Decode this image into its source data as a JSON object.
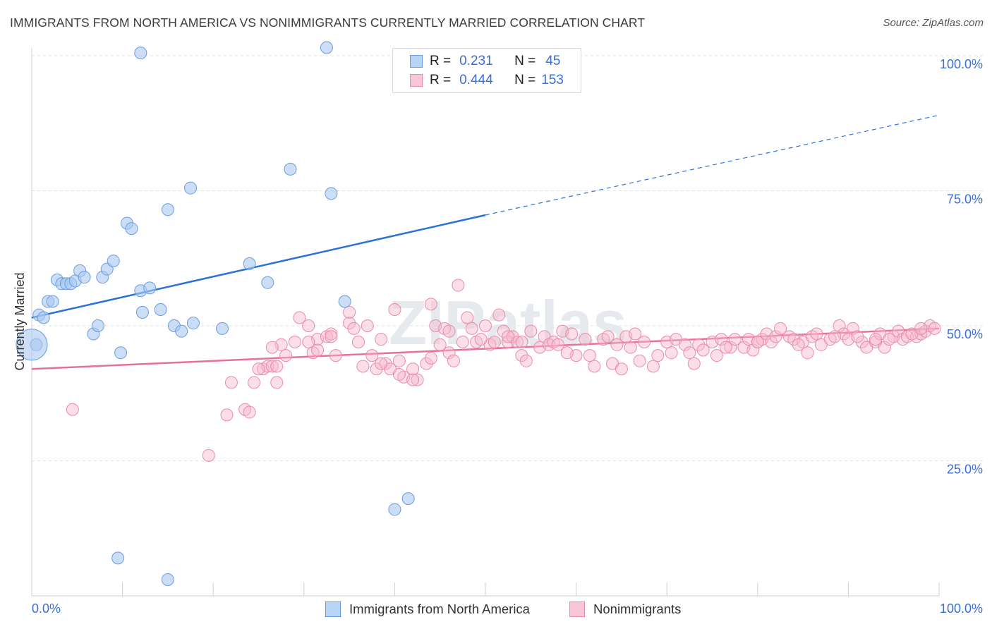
{
  "title": "IMMIGRANTS FROM NORTH AMERICA VS NONIMMIGRANTS CURRENTLY MARRIED CORRELATION CHART",
  "source": "Source: ZipAtlas.com",
  "watermark": "ZIPatlas",
  "legend": {
    "rows": [
      {
        "r_label": "R =",
        "r_value": "0.231",
        "n_label": "N =",
        "n_value": "45"
      },
      {
        "r_label": "R =",
        "r_value": "0.444",
        "n_label": "N =",
        "n_value": "153"
      }
    ]
  },
  "bottom_legend": {
    "series1": "Immigrants from North America",
    "series2": "Nonimmigrants"
  },
  "chart_data": {
    "type": "scatter",
    "title": "IMMIGRANTS FROM NORTH AMERICA VS NONIMMIGRANTS CURRENTLY MARRIED CORRELATION CHART",
    "xlabel": "",
    "ylabel": "Currently Married",
    "xlim": [
      0,
      100
    ],
    "ylim": [
      0,
      100
    ],
    "x_tick_labels": [
      "0.0%",
      "100.0%"
    ],
    "y_tick_labels": [
      "25.0%",
      "50.0%",
      "75.0%",
      "100.0%"
    ],
    "y_ticks": [
      25,
      50,
      75,
      100
    ],
    "grid": "horizontal dashed",
    "legend_placement": "top-center",
    "colors": {
      "blue": "#a9c8f0",
      "blue_edge": "#6a9ee0",
      "blue_line": "#2b72d6",
      "pink": "#f6b8cb",
      "pink_edge": "#ec8aa9",
      "pink_line": "#e8719a",
      "value_text": "#3a6fd8"
    },
    "series": [
      {
        "name": "Immigrants from North America",
        "trend": {
          "x0": 0,
          "y0": 51.5,
          "x1": 50,
          "y1": 70.5,
          "dashed_to_x": 100,
          "dashed_to_y": 89.0
        },
        "points": [
          [
            0.5,
            46.5
          ],
          [
            0.8,
            52
          ],
          [
            1.3,
            51.5
          ],
          [
            1.8,
            54.5
          ],
          [
            2.3,
            54.5
          ],
          [
            2.8,
            58.5
          ],
          [
            3.3,
            57.8
          ],
          [
            3.8,
            57.8
          ],
          [
            4.3,
            57.8
          ],
          [
            4.8,
            58.3
          ],
          [
            5.3,
            60.2
          ],
          [
            5.8,
            59
          ],
          [
            6.8,
            48.5
          ],
          [
            7.3,
            50
          ],
          [
            7.8,
            59
          ],
          [
            8.3,
            60.5
          ],
          [
            9.0,
            62.0
          ],
          [
            9.8,
            45
          ],
          [
            10.5,
            69
          ],
          [
            11.0,
            68
          ],
          [
            12.0,
            56.5
          ],
          [
            12.2,
            52.5
          ],
          [
            13.0,
            57
          ],
          [
            14.2,
            53
          ],
          [
            15.0,
            71.5
          ],
          [
            15.7,
            50
          ],
          [
            16.5,
            49
          ],
          [
            17.5,
            75.5
          ],
          [
            17.8,
            50.5
          ],
          [
            21.0,
            49.5
          ],
          [
            24.0,
            61.5
          ],
          [
            26.0,
            58
          ],
          [
            28.5,
            79
          ],
          [
            32.5,
            101.5
          ],
          [
            33.0,
            74.5
          ],
          [
            34.5,
            54.5
          ],
          [
            40.0,
            16
          ],
          [
            41.5,
            18
          ],
          [
            12.0,
            100.5
          ],
          [
            9.5,
            7
          ],
          [
            15.0,
            3
          ]
        ]
      },
      {
        "name": "Nonimmigrants",
        "trend": {
          "x0": 0,
          "y0": 42.0,
          "x1": 100,
          "y1": 49.5
        },
        "points": [
          [
            4.5,
            34.5
          ],
          [
            19.5,
            26
          ],
          [
            21.5,
            33.5
          ],
          [
            22.0,
            39.5
          ],
          [
            23.5,
            34.5
          ],
          [
            24.0,
            34
          ],
          [
            24.5,
            39.5
          ],
          [
            25.5,
            42
          ],
          [
            26.0,
            42.5
          ],
          [
            26.5,
            42.5
          ],
          [
            27.0,
            39.5
          ],
          [
            27.5,
            46.5
          ],
          [
            28.0,
            44.5
          ],
          [
            29.0,
            47
          ],
          [
            29.5,
            51.5
          ],
          [
            30.5,
            50
          ],
          [
            31.0,
            45
          ],
          [
            31.5,
            47.5
          ],
          [
            32.5,
            48
          ],
          [
            33.0,
            48.5
          ],
          [
            33.5,
            44.5
          ],
          [
            35.0,
            50.5
          ],
          [
            35.5,
            49.5
          ],
          [
            36.0,
            47
          ],
          [
            37.0,
            50
          ],
          [
            37.5,
            44.5
          ],
          [
            38.0,
            42
          ],
          [
            38.5,
            47.5
          ],
          [
            39.0,
            43
          ],
          [
            39.5,
            42
          ],
          [
            40.0,
            53
          ],
          [
            40.5,
            43.5
          ],
          [
            41.0,
            40.5
          ],
          [
            42.0,
            42
          ],
          [
            42.5,
            40
          ],
          [
            43.5,
            43
          ],
          [
            44.0,
            54
          ],
          [
            44.5,
            50
          ],
          [
            45.0,
            46.5
          ],
          [
            45.5,
            49.5
          ],
          [
            46.0,
            45
          ],
          [
            46.5,
            43.5
          ],
          [
            47.0,
            57.5
          ],
          [
            47.5,
            47
          ],
          [
            48.0,
            51.5
          ],
          [
            48.5,
            49.5
          ],
          [
            49.0,
            47
          ],
          [
            50.0,
            50
          ],
          [
            50.5,
            46.5
          ],
          [
            51.0,
            47
          ],
          [
            51.5,
            52
          ],
          [
            52.0,
            49
          ],
          [
            52.5,
            47
          ],
          [
            53.0,
            48
          ],
          [
            53.5,
            47
          ],
          [
            54.0,
            44.5
          ],
          [
            54.5,
            43.5
          ],
          [
            55.0,
            49
          ],
          [
            56.0,
            46
          ],
          [
            56.5,
            48
          ],
          [
            57.0,
            46.5
          ],
          [
            57.5,
            47
          ],
          [
            58.5,
            49
          ],
          [
            59.5,
            48.5
          ],
          [
            60.0,
            44.5
          ],
          [
            61.0,
            47.5
          ],
          [
            62.0,
            42.5
          ],
          [
            63.0,
            47.5
          ],
          [
            63.5,
            48
          ],
          [
            64.0,
            43
          ],
          [
            64.5,
            46.5
          ],
          [
            65.0,
            42
          ],
          [
            65.5,
            48
          ],
          [
            66.0,
            46
          ],
          [
            66.5,
            48.5
          ],
          [
            67.5,
            47
          ],
          [
            68.5,
            42.5
          ],
          [
            69.0,
            44.5
          ],
          [
            70.0,
            47
          ],
          [
            71.0,
            47.5
          ],
          [
            72.0,
            46.5
          ],
          [
            72.5,
            45
          ],
          [
            73.5,
            46.5
          ],
          [
            74.0,
            45.5
          ],
          [
            75.0,
            47
          ],
          [
            75.5,
            44.5
          ],
          [
            76.0,
            47.5
          ],
          [
            77.0,
            46
          ],
          [
            77.5,
            47.5
          ],
          [
            78.5,
            46
          ],
          [
            79.0,
            47.5
          ],
          [
            79.5,
            45.5
          ],
          [
            80.0,
            47
          ],
          [
            80.5,
            47.5
          ],
          [
            81.0,
            48.5
          ],
          [
            81.5,
            47
          ],
          [
            82.0,
            48
          ],
          [
            83.5,
            48
          ],
          [
            84.0,
            47.5
          ],
          [
            85.0,
            47
          ],
          [
            85.5,
            45
          ],
          [
            86.0,
            48
          ],
          [
            87.0,
            46.5
          ],
          [
            88.0,
            47.5
          ],
          [
            89.0,
            50
          ],
          [
            89.5,
            48.5
          ],
          [
            90.0,
            47.5
          ],
          [
            90.5,
            49.5
          ],
          [
            91.5,
            47
          ],
          [
            92.0,
            46
          ],
          [
            93.0,
            47
          ],
          [
            93.5,
            48.5
          ],
          [
            94.0,
            46
          ],
          [
            95.0,
            48
          ],
          [
            95.5,
            49
          ],
          [
            96.0,
            47.5
          ],
          [
            96.5,
            48
          ],
          [
            97.5,
            48
          ],
          [
            98.0,
            48.5
          ],
          [
            98.5,
            49
          ],
          [
            99.0,
            50
          ],
          [
            99.5,
            49.5
          ],
          [
            35.0,
            52.5
          ],
          [
            30.5,
            47
          ],
          [
            44.0,
            44
          ],
          [
            58.0,
            46.5
          ],
          [
            67.0,
            43.5
          ],
          [
            76.5,
            46
          ],
          [
            82.5,
            49.5
          ],
          [
            88.5,
            48
          ],
          [
            91.0,
            48
          ],
          [
            93.0,
            47.5
          ],
          [
            97.0,
            48.5
          ],
          [
            31.5,
            45.5
          ],
          [
            36.5,
            42.5
          ],
          [
            49.5,
            47.5
          ],
          [
            54.0,
            47
          ],
          [
            61.5,
            44.5
          ],
          [
            70.5,
            45
          ],
          [
            84.5,
            46.5
          ],
          [
            94.5,
            47.5
          ],
          [
            25.0,
            42
          ],
          [
            27.0,
            42.5
          ],
          [
            33.0,
            48
          ],
          [
            40.5,
            41
          ],
          [
            46.0,
            49
          ],
          [
            52.5,
            48
          ],
          [
            59.0,
            45
          ],
          [
            73.0,
            43
          ],
          [
            80.0,
            47
          ],
          [
            86.5,
            48.5
          ],
          [
            98.0,
            49.5
          ],
          [
            26.5,
            46
          ],
          [
            38.5,
            43
          ],
          [
            42.0,
            40
          ]
        ]
      }
    ]
  }
}
